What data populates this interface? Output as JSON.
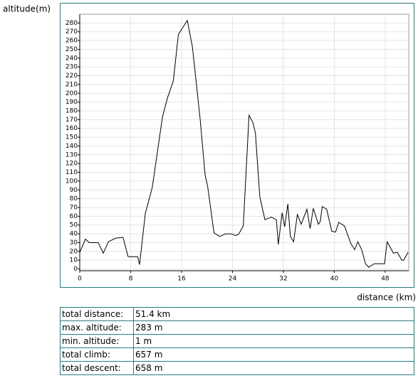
{
  "chart_data": {
    "type": "line",
    "y_label": "altitude(m)",
    "x_label": "distance (km)",
    "x": [
      0,
      0.9,
      1.5,
      2.9,
      3.7,
      4.5,
      5.6,
      6.8,
      7.6,
      8.3,
      9.1,
      9.4,
      10.3,
      11.4,
      13.0,
      13.8,
      14.7,
      15.5,
      16.9,
      17.7,
      18.9,
      19.7,
      20.1,
      21.1,
      22.0,
      22.9,
      23.8,
      24.5,
      25.0,
      25.7,
      26.6,
      27.2,
      27.6,
      28.3,
      29.1,
      30.1,
      30.9,
      31.2,
      31.8,
      32.2,
      32.7,
      33.1,
      33.6,
      34.2,
      34.8,
      35.7,
      36.2,
      36.7,
      37.5,
      37.8,
      38.1,
      38.8,
      39.6,
      40.2,
      40.7,
      41.6,
      42.6,
      43.2,
      43.7,
      44.3,
      44.9,
      45.4,
      46.3,
      47.1,
      47.9,
      48.3,
      49.3,
      49.9,
      50.6,
      50.9,
      51.6
    ],
    "series": [
      {
        "color": "#000000",
        "values": [
          19,
          34,
          30,
          30,
          18,
          31,
          35,
          36,
          14,
          14,
          14,
          5,
          63,
          93,
          173,
          195,
          214,
          267,
          283,
          253,
          172,
          107,
          94,
          41,
          37,
          40,
          40,
          38,
          40,
          49,
          175,
          167,
          155,
          82,
          56,
          59,
          56,
          28,
          64,
          48,
          74,
          37,
          31,
          62,
          51,
          68,
          46,
          69,
          51,
          54,
          71,
          68,
          43,
          42,
          53,
          49,
          29,
          22,
          31,
          22,
          6,
          2,
          6,
          6,
          6,
          31,
          18,
          19,
          10,
          10,
          19
        ]
      }
    ],
    "xlim": [
      0,
      51.7
    ],
    "ylim": [
      -2,
      290
    ],
    "xticks": [
      0,
      8,
      16,
      24,
      32,
      40,
      48
    ],
    "yticks": [
      0,
      10,
      20,
      30,
      40,
      50,
      60,
      70,
      80,
      90,
      100,
      110,
      120,
      130,
      140,
      150,
      160,
      170,
      180,
      190,
      200,
      210,
      220,
      230,
      240,
      250,
      260,
      270,
      280
    ],
    "grid": true
  },
  "table": {
    "rows": [
      [
        "total distance:",
        "51.4 km"
      ],
      [
        "max. altitude:",
        "283 m"
      ],
      [
        "min. altitude:",
        "1 m"
      ],
      [
        "total climb:",
        "657 m"
      ],
      [
        "total descent:",
        "658 m"
      ]
    ]
  }
}
